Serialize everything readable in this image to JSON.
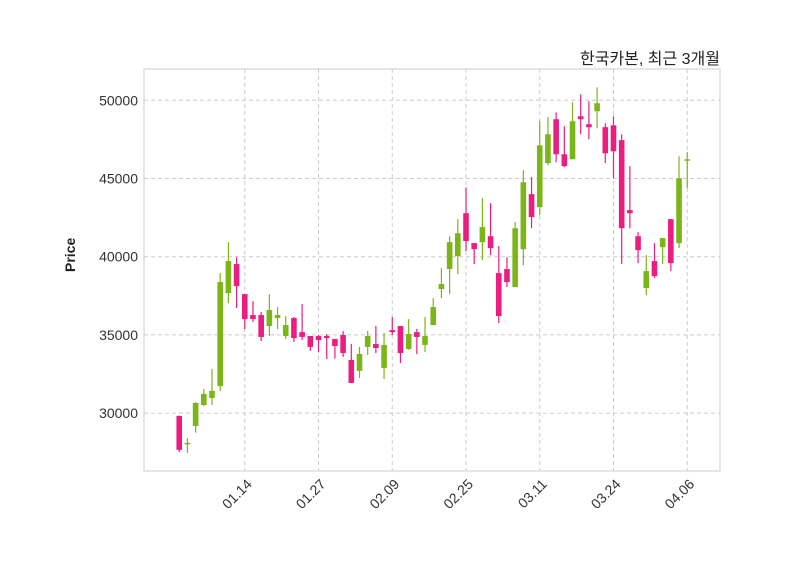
{
  "chart_data": {
    "type": "candlestick",
    "title": "한국카본, 최근 3개월",
    "xlabel": "",
    "ylabel": "Price",
    "ylim": [
      26300,
      52000
    ],
    "xlim_index": [
      -4.3,
      66
    ],
    "grid": true,
    "colors": {
      "up": "#7cb518",
      "down": "#ea1e80",
      "grid": "#cccccc",
      "frame": "#dddddd"
    },
    "yticks": [
      30000,
      35000,
      40000,
      45000,
      50000
    ],
    "xticks": [
      {
        "index": 8,
        "label": "01.14"
      },
      {
        "index": 17,
        "label": "01.27"
      },
      {
        "index": 26,
        "label": "02.09"
      },
      {
        "index": 35,
        "label": "02.25"
      },
      {
        "index": 44,
        "label": "03.11"
      },
      {
        "index": 53,
        "label": "03.24"
      },
      {
        "index": 62,
        "label": "04.06"
      }
    ],
    "ohlc": [
      [
        29820,
        29850,
        27500,
        27650
      ],
      [
        28100,
        28400,
        27450,
        28100
      ],
      [
        29180,
        30700,
        28750,
        30650
      ],
      [
        30520,
        31540,
        30460,
        31230
      ],
      [
        30970,
        32820,
        30520,
        31420
      ],
      [
        31730,
        38950,
        31420,
        38380
      ],
      [
        37670,
        40930,
        37030,
        39720
      ],
      [
        39530,
        39970,
        36720,
        38120
      ],
      [
        37610,
        37610,
        35370,
        36010
      ],
      [
        36270,
        37160,
        35820,
        36010
      ],
      [
        36270,
        36460,
        34610,
        34870
      ],
      [
        35570,
        37610,
        34930,
        36590
      ],
      [
        36080,
        36780,
        35370,
        36270
      ],
      [
        34930,
        36210,
        34740,
        35630
      ],
      [
        36080,
        36140,
        34550,
        34800
      ],
      [
        35180,
        36970,
        34670,
        34870
      ],
      [
        34930,
        34930,
        33970,
        34230
      ],
      [
        34930,
        34990,
        33900,
        34670
      ],
      [
        34930,
        35050,
        33460,
        34800
      ],
      [
        34740,
        34740,
        33480,
        34290
      ],
      [
        34990,
        35250,
        33590,
        33840
      ],
      [
        33400,
        34420,
        31930,
        31930
      ],
      [
        32700,
        34230,
        32250,
        33780
      ],
      [
        34230,
        35250,
        33720,
        34930
      ],
      [
        34420,
        35570,
        33840,
        34160
      ],
      [
        32890,
        35120,
        32180,
        34360
      ],
      [
        35310,
        36140,
        34990,
        35180
      ],
      [
        35570,
        35570,
        33200,
        33840
      ],
      [
        34100,
        36010,
        34040,
        35060
      ],
      [
        35180,
        35380,
        33780,
        34870
      ],
      [
        34360,
        36140,
        33910,
        34930
      ],
      [
        35630,
        37350,
        35630,
        36780
      ],
      [
        37930,
        39270,
        37350,
        38250
      ],
      [
        39210,
        41310,
        37610,
        40930
      ],
      [
        40040,
        42400,
        38890,
        41500
      ],
      [
        42780,
        44440,
        40360,
        41000
      ],
      [
        40870,
        40870,
        39530,
        40480
      ],
      [
        40930,
        43740,
        39780,
        41890
      ],
      [
        41310,
        43420,
        40100,
        40550
      ],
      [
        38950,
        40680,
        35760,
        36210
      ],
      [
        39210,
        39970,
        38060,
        38380
      ],
      [
        38060,
        42210,
        38060,
        41820
      ],
      [
        40480,
        45530,
        39460,
        44760
      ],
      [
        44000,
        45080,
        41820,
        42530
      ],
      [
        43170,
        48660,
        42660,
        47120
      ],
      [
        45980,
        48920,
        45850,
        47830
      ],
      [
        48790,
        49230,
        46040,
        46550
      ],
      [
        46550,
        48340,
        45720,
        45790
      ],
      [
        46230,
        49870,
        46230,
        48660
      ],
      [
        48980,
        50380,
        47830,
        48790
      ],
      [
        48470,
        49940,
        47510,
        48280
      ],
      [
        49300,
        50830,
        48210,
        49810
      ],
      [
        48280,
        48530,
        45980,
        46610
      ],
      [
        48400,
        48980,
        45020,
        46740
      ],
      [
        47450,
        47830,
        39530,
        41820
      ],
      [
        42980,
        45790,
        41820,
        42780
      ],
      [
        41310,
        41570,
        39590,
        40420
      ],
      [
        38000,
        40100,
        37540,
        39080
      ],
      [
        39720,
        40870,
        38630,
        38760
      ],
      [
        40610,
        41190,
        39530,
        41190
      ],
      [
        42400,
        42400,
        39080,
        39590
      ],
      [
        40870,
        46420,
        40550,
        45020
      ],
      [
        46230,
        46680,
        44380,
        46230
      ]
    ]
  }
}
